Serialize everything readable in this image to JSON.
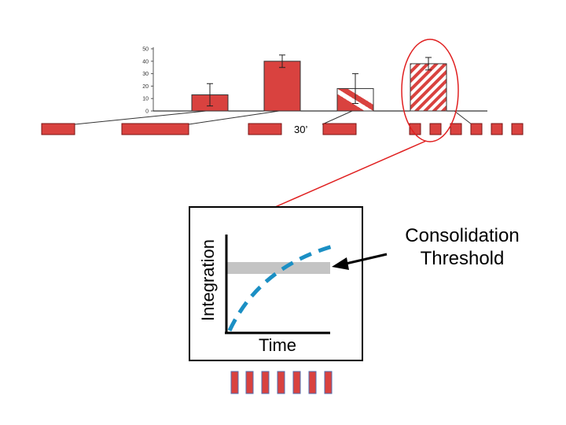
{
  "colors": {
    "bar_fill": "#d9423f",
    "bar_stroke": "#7a1515",
    "curve": "#1b8fc4",
    "threshold_band": "#c4c4c4",
    "highlight": "#e02020",
    "block_edge": "#4f6fb0"
  },
  "chart_data": {
    "type": "bar",
    "categories": [
      "",
      "",
      "",
      ""
    ],
    "values": [
      13,
      40,
      18,
      38
    ],
    "error": [
      9,
      5,
      12,
      5
    ],
    "patterns": [
      "solid",
      "solid",
      "half-hatched",
      "hatched"
    ],
    "yticks": [
      "0",
      "10",
      "20",
      "30",
      "40",
      "50"
    ],
    "ylim": [
      0,
      50
    ],
    "title": "",
    "xlabel": "",
    "ylabel": ""
  },
  "timeline": {
    "gap_label": "30’"
  },
  "inset": {
    "xlabel": "Time",
    "ylabel": "Integration"
  },
  "callout": {
    "line1": "Consolidation",
    "line2": "Threshold"
  }
}
